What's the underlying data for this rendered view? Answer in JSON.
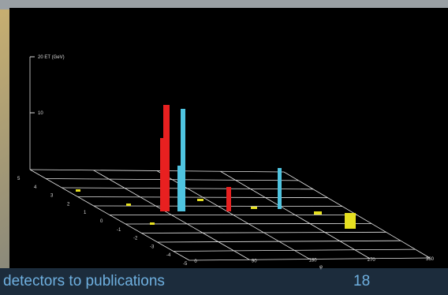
{
  "plot": {
    "z_axis_labels": [
      "20 ET (GeV)",
      "10"
    ],
    "phi_labels": [
      "0",
      "90",
      "180",
      "270",
      "360"
    ],
    "phi_title": "φ",
    "eta_labels": [
      "5",
      "4",
      "3",
      "2",
      "1",
      "0",
      "-1",
      "-2",
      "-3",
      "-4",
      "-5"
    ]
  },
  "footer": {
    "text": "detectors to publications",
    "page": "18"
  }
}
